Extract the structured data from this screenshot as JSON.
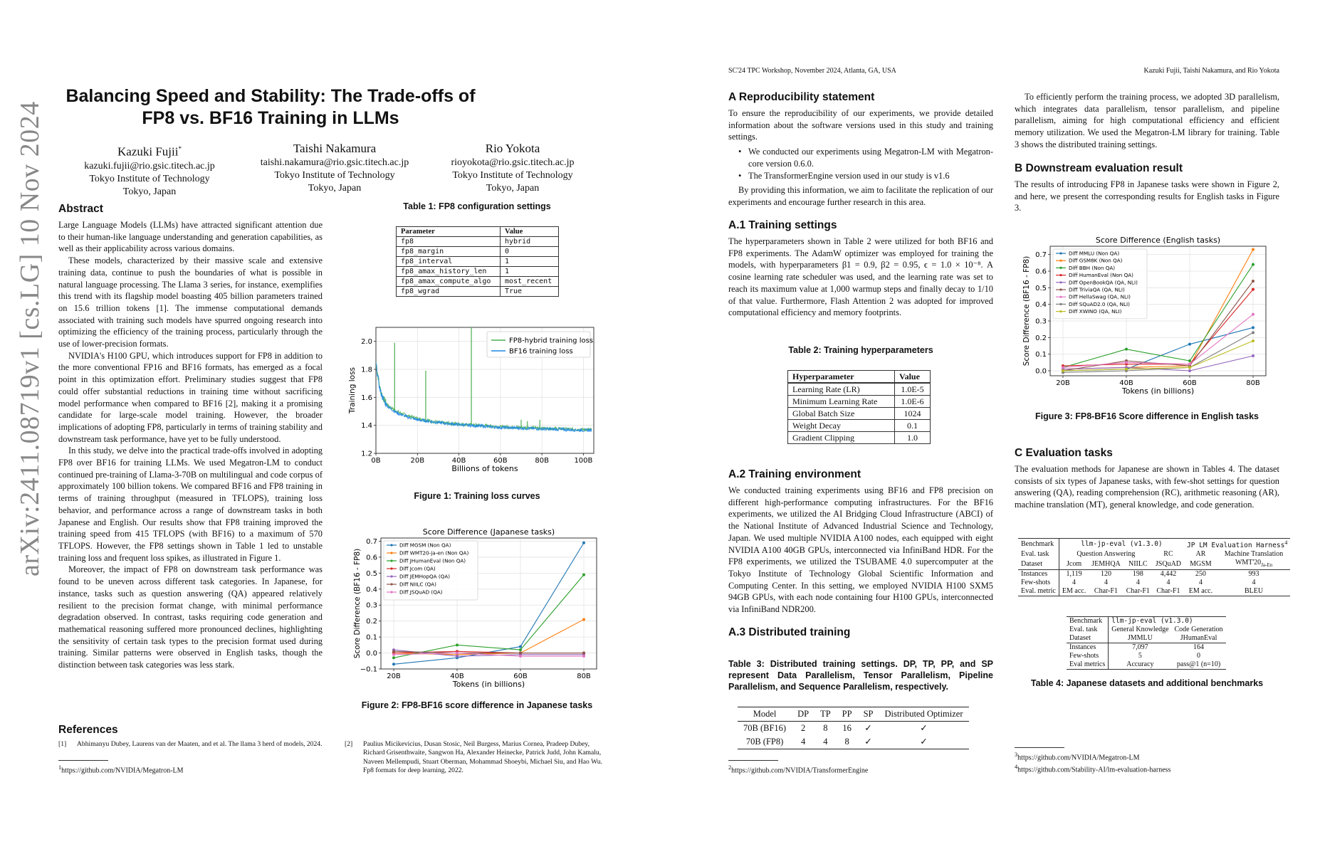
{
  "arxiv": {
    "id": "arXiv:2411.08719v1  [cs.LG]  10 Nov 2024"
  },
  "paper": {
    "title": "Balancing Speed and Stability: The Trade-offs of FP8 vs. BF16 Training in LLMs",
    "authors": [
      {
        "name": "Kazuki Fujii",
        "mark": "*",
        "email": "kazuki.fujii@rio.gsic.titech.ac.jp",
        "affiliation": "Tokyo Institute of Technology",
        "location": "Tokyo, Japan"
      },
      {
        "name": "Taishi Nakamura",
        "mark": "",
        "email": "taishi.nakamura@rio.gsic.titech.ac.jp",
        "affiliation": "Tokyo Institute of Technology",
        "location": "Tokyo, Japan"
      },
      {
        "name": "Rio Yokota",
        "mark": "",
        "email": "rioyokota@rio.gsic.titech.ac.jp",
        "affiliation": "Tokyo Institute of Technology",
        "location": "Tokyo, Japan"
      }
    ],
    "abstract_heading": "Abstract",
    "abstract": [
      "Large Language Models (LLMs) have attracted significant attention due to their human-like language understanding and generation capabilities, as well as their applicability across various domains.",
      "These models, characterized by their massive scale and extensive training data, continue to push the boundaries of what is possible in natural language processing. The Llama 3 series, for instance, exemplifies this trend with its flagship model boasting 405 billion parameters trained on 15.6 trillion tokens [1]. The immense computational demands associated with training such models have spurred ongoing research into optimizing the efficiency of the training process, particularly through the use of lower-precision formats.",
      "NVIDIA's H100 GPU, which introduces support for FP8 in addition to the more conventional FP16 and BF16 formats, has emerged as a focal point in this optimization effort. Preliminary studies suggest that FP8 could offer substantial reductions in training time without sacrificing model performance when compared to BF16 [2], making it a promising candidate for large-scale model training. However, the broader implications of adopting FP8, particularly in terms of training stability and downstream task performance, have yet to be fully understood.",
      "In this study, we delve into the practical trade-offs involved in adopting FP8 over BF16 for training LLMs. We used Megatron-LM to conduct continued pre-training of Llama-3-70B on multilingual and code corpus of approximately 100 billion tokens. We compared BF16 and FP8 training in terms of training throughput (measured in TFLOPS), training loss behavior, and performance across a range of downstream tasks in both Japanese and English. Our results show that FP8 training improved the training speed from 415 TFLOPS (with BF16) to a maximum of 570 TFLOPS. However, the FP8 settings shown in Table 1 led to unstable training loss and frequent loss spikes, as illustrated in Figure 1.",
      "Moreover, the impact of FP8 on downstream task performance was found to be uneven across different task categories. In Japanese, for instance, tasks such as question answering (QA) appeared relatively resilient to the precision format change, with minimal performance degradation observed. In contrast, tasks requiring code generation and mathematical reasoning suffered more pronounced declines, highlighting the sensitivity of certain task types to the precision format used during training. Similar patterns were observed in English tasks, though the distinction between task categories was less stark."
    ],
    "references_heading": "References",
    "references": [
      {
        "n": "[1]",
        "text": "Abhimanyu Dubey, Laurens van der Maaten, and et al. The llama 3 herd of models, 2024."
      },
      {
        "n": "[2]",
        "text": "Paulius Micikevicius, Dusan Stosic, Neil Burgess, Marius Cornea, Pradeep Dubey, Richard Grisenthwaite, Sangwon Ha, Alexander Heinecke, Patrick Judd, John Kamalu, Naveen Mellempudi, Stuart Oberman, Mohammad Shoeybi, Michael Siu, and Hao Wu. Fp8 formats for deep learning, 2022."
      }
    ],
    "footnote1": "https://github.com/NVIDIA/Megatron-LM"
  },
  "table1": {
    "caption": "Table 1: FP8 configuration settings",
    "headers": [
      "Parameter",
      "Value"
    ],
    "rows": [
      [
        "fp8",
        "hybrid"
      ],
      [
        "fp8_margin",
        "0"
      ],
      [
        "fp8_interval",
        "1"
      ],
      [
        "fp8_amax_history_len",
        "1"
      ],
      [
        "fp8_amax_compute_algo",
        "most_recent"
      ],
      [
        "fp8_wgrad",
        "True"
      ]
    ]
  },
  "figure1": {
    "caption": "Figure 1: Training loss curves"
  },
  "figure2": {
    "caption": "Figure 2: FP8-BF16 score difference in Japanese tasks"
  },
  "chart_data": [
    {
      "id": "fig1",
      "type": "line",
      "xlabel": "Billions of tokens",
      "ylabel": "Training loss",
      "xlim": [
        0,
        105
      ],
      "ylim": [
        1.2,
        2.1
      ],
      "xticks": [
        0,
        20,
        40,
        60,
        80,
        100
      ],
      "xtick_labels": [
        "0B",
        "20B",
        "40B",
        "60B",
        "80B",
        "100B"
      ],
      "yticks": [
        1.2,
        1.4,
        1.6,
        1.8,
        2.0
      ],
      "ytick_labels": [
        "1.2",
        "1.4",
        "1.6",
        "1.8",
        "2.0"
      ],
      "grid": true,
      "legend": "top-right",
      "series": [
        {
          "name": "FP8-hybrid training loss",
          "color": "#4caf50",
          "x": [
            0,
            1,
            2,
            4,
            6,
            10,
            15,
            20,
            30,
            40,
            50,
            60,
            70,
            80,
            90,
            100,
            104
          ],
          "y": [
            1.85,
            1.75,
            1.66,
            1.58,
            1.54,
            1.5,
            1.47,
            1.45,
            1.42,
            1.41,
            1.4,
            1.39,
            1.385,
            1.38,
            1.375,
            1.37,
            1.37
          ],
          "spikes": [
            [
              9,
              1.99
            ],
            [
              24,
              1.79
            ],
            [
              46,
              2.1
            ],
            [
              70,
              1.44
            ],
            [
              73,
              1.43
            ],
            [
              79,
              1.44
            ]
          ]
        },
        {
          "name": "BF16 training loss",
          "color": "#1e88e5",
          "x": [
            0,
            1,
            2,
            4,
            6,
            10,
            15,
            20,
            30,
            40,
            50,
            60,
            70,
            80,
            90,
            100,
            104
          ],
          "y": [
            1.84,
            1.74,
            1.65,
            1.57,
            1.53,
            1.49,
            1.46,
            1.44,
            1.42,
            1.405,
            1.395,
            1.385,
            1.38,
            1.375,
            1.37,
            1.365,
            1.365
          ]
        }
      ]
    },
    {
      "id": "fig2",
      "type": "line",
      "title": "Score Difference (Japanese tasks)",
      "xlabel": "Tokens (in billions)",
      "ylabel": "Score Difference (BF16 - FP8)",
      "categories": [
        "20B",
        "40B",
        "60B",
        "80B"
      ],
      "ylim": [
        -0.1,
        0.72
      ],
      "yticks": [
        -0.1,
        0.0,
        0.1,
        0.2,
        0.3,
        0.4,
        0.5,
        0.6,
        0.7
      ],
      "ytick_labels": [
        "−0.1",
        "0.0",
        "0.1",
        "0.2",
        "0.3",
        "0.4",
        "0.5",
        "0.6",
        "0.7"
      ],
      "grid": true,
      "legend": "top-left",
      "series": [
        {
          "name": "Diff MGSM (Non QA)",
          "color": "#1f77b4",
          "values": [
            -0.07,
            -0.03,
            0.04,
            0.69
          ]
        },
        {
          "name": "Diff WMT20-ja-en (Non QA)",
          "color": "#ff7f0e",
          "values": [
            0.0,
            -0.01,
            0.0,
            0.21
          ]
        },
        {
          "name": "Diff JHumanEval (Non QA)",
          "color": "#2ca02c",
          "values": [
            -0.03,
            0.05,
            0.02,
            0.49
          ]
        },
        {
          "name": "Diff Jcom (QA)",
          "color": "#d62728",
          "values": [
            0.0,
            0.01,
            0.0,
            0.0
          ]
        },
        {
          "name": "Diff JEMHopQA (QA)",
          "color": "#9467bd",
          "values": [
            0.02,
            -0.02,
            -0.01,
            -0.01
          ]
        },
        {
          "name": "Diff NIILC (QA)",
          "color": "#8c564b",
          "values": [
            0.01,
            0.0,
            0.0,
            0.0
          ]
        },
        {
          "name": "Diff JSQuAD (QA)",
          "color": "#e377c2",
          "values": [
            -0.01,
            0.0,
            -0.02,
            -0.02
          ]
        }
      ]
    },
    {
      "id": "fig3",
      "type": "line",
      "title": "Score Difference (English tasks)",
      "xlabel": "Tokens (in billions)",
      "ylabel": "Score Difference (BF16 - FP8)",
      "categories": [
        "20B",
        "40B",
        "60B",
        "80B"
      ],
      "ylim": [
        -0.03,
        0.75
      ],
      "yticks": [
        0.0,
        0.1,
        0.2,
        0.3,
        0.4,
        0.5,
        0.6,
        0.7
      ],
      "ytick_labels": [
        "0.0",
        "0.1",
        "0.2",
        "0.3",
        "0.4",
        "0.5",
        "0.6",
        "0.7"
      ],
      "grid": true,
      "legend": "top-left",
      "series": [
        {
          "name": "Diff MMLU (Non QA)",
          "color": "#1f77b4",
          "values": [
            0.0,
            0.01,
            0.16,
            0.26
          ]
        },
        {
          "name": "Diff GSM8K (Non QA)",
          "color": "#ff7f0e",
          "values": [
            0.01,
            0.02,
            0.03,
            0.73
          ]
        },
        {
          "name": "Diff BBH (Non QA)",
          "color": "#2ca02c",
          "values": [
            0.02,
            0.13,
            0.06,
            0.64
          ]
        },
        {
          "name": "Diff HumanEval (Non QA)",
          "color": "#d62728",
          "values": [
            0.03,
            0.04,
            0.04,
            0.49
          ]
        },
        {
          "name": "Diff OpenBookQA (QA, NLI)",
          "color": "#9467bd",
          "values": [
            0.01,
            0.02,
            0.0,
            0.09
          ]
        },
        {
          "name": "Diff TriviaQA (QA, NLI)",
          "color": "#8c564b",
          "values": [
            0.0,
            0.06,
            0.03,
            0.54
          ]
        },
        {
          "name": "Diff HellaSwag (QA, NLI)",
          "color": "#e377c2",
          "values": [
            0.02,
            0.05,
            0.04,
            0.34
          ]
        },
        {
          "name": "Diff SQuAD2.0 (QA, NLI)",
          "color": "#7f7f7f",
          "values": [
            -0.01,
            0.0,
            0.02,
            0.23
          ]
        },
        {
          "name": "Diff XWINO (QA, NLI)",
          "color": "#bcbd22",
          "values": [
            0.0,
            0.01,
            0.02,
            0.18
          ]
        }
      ]
    }
  ],
  "page2": {
    "header_left": "SC'24 TPC Workshop, November 2024, Atlanta, GA, USA",
    "header_right": "Kazuki Fujii, Taishi Nakamura, and Rio Yokota",
    "secA": {
      "heading": "A    Reproducibility statement",
      "intro": "To ensure the reproducibility of our experiments, we provide detailed information about the software versions used in this study and training settings.",
      "bullets": [
        "We conducted our experiments using Megatron-LM with Megatron-core version 0.6.0.",
        "The TransformerEngine version used in our study is v1.6"
      ],
      "outro": "By providing this information, we aim to facilitate the replication of our experiments and encourage further research in this area."
    },
    "secA1": {
      "heading": "A.1    Training settings",
      "text": "The hyperparameters shown in Table 2 were utilized for both BF16 and FP8 experiments. The AdamW optimizer was employed for training the models, with hyperparameters β1 = 0.9, β2 = 0.95, ϵ = 1.0 × 10⁻⁸. A cosine learning rate scheduler was used, and the learning rate was set to reach its maximum value at 1,000 warmup steps and finally decay to 1/10 of that value. Furthermore, Flash Attention 2 was adopted for improved computational efficiency and memory footprints."
    },
    "table2": {
      "caption": "Table 2: Training hyperparameters",
      "headers": [
        "Hyperparameter",
        "Value"
      ],
      "rows": [
        [
          "Learning Rate (LR)",
          "1.0E-5"
        ],
        [
          "Minimum Learning Rate",
          "1.0E-6"
        ],
        [
          "Global Batch Size",
          "1024"
        ],
        [
          "Weight Decay",
          "0.1"
        ],
        [
          "Gradient Clipping",
          "1.0"
        ]
      ]
    },
    "secA2": {
      "heading": "A.2    Training environment",
      "text": "We conducted training experiments using BF16 and FP8 precision on different high-performance computing infrastructures. For the BF16 experiments, we utilized the AI Bridging Cloud Infrastructure (ABCI) of the National Institute of Advanced Industrial Science and Technology, Japan. We used multiple NVIDIA A100 nodes, each equipped with eight NVIDIA A100 40GB GPUs, interconnected via InfiniBand HDR. For the FP8 experiments, we utilized the TSUBAME 4.0 supercomputer at the Tokyo Institute of Technology Global Scientific Information and Computing Center. In this setting, we employed NVIDIA H100 SXM5 94GB GPUs, with each node containing four H100 GPUs, interconnected via InfiniBand NDR200."
    },
    "secA3": {
      "heading": "A.3    Distributed training"
    },
    "table3": {
      "caption": "Table 3: Distributed training settings. DP, TP, PP, and SP represent Data Parallelism, Tensor Parallelism, Pipeline Parallelism, and Sequence Parallelism, respectively.",
      "headers": [
        "Model",
        "DP",
        "TP",
        "PP",
        "SP",
        "Distributed Optimizer"
      ],
      "rows": [
        [
          "70B (BF16)",
          "2",
          "8",
          "16",
          "✓",
          "✓"
        ],
        [
          "70B (FP8)",
          "4",
          "4",
          "8",
          "✓",
          "✓"
        ]
      ]
    },
    "footnote2": "https://github.com/NVIDIA/TransformerEngine",
    "colR_intro": "To efficiently perform the training process, we adopted 3D parallelism, which integrates data parallelism, tensor parallelism, and pipeline parallelism, aiming for high computational efficiency and efficient memory utilization. We used the Megatron-LM library for training. Table 3 shows the distributed training settings.",
    "secB": {
      "heading": "B    Downstream evaluation result",
      "text": "The results of introducing FP8 in Japanese tasks were shown in Figure 2, and here, we present the corresponding results for English tasks in Figure 3."
    },
    "figure3": {
      "caption": "Figure 3: FP8-BF16 Score difference in English tasks"
    },
    "secC": {
      "heading": "C    Evaluation tasks",
      "text": "The evaluation methods for Japanese are shown in Tables 4. The dataset consists of six types of Japanese tasks, with few-shot settings for question answering (QA), reading comprehension (RC), arithmetic reasoning (AR), machine translation (MT), general knowledge, and code generation."
    },
    "table4a": {
      "benchmark_label": "Benchmark",
      "bench1": "llm-jp-eval (v1.3.0)",
      "bench2": "JP LM Evaluation Harness",
      "task_label": "Eval. task",
      "tasks": [
        "Question Answering",
        "RC",
        "AR",
        "Machine Translation"
      ],
      "dataset_label": "Dataset",
      "datasets": [
        "Jcom",
        "JEMHQA",
        "NIILC",
        "JSQuAD",
        "MGSM",
        "WMT'20"
      ],
      "wmt_sub": "Ja-En",
      "instances_label": "Instances",
      "instances": [
        "1,119",
        "120",
        "198",
        "4,442",
        "250",
        "993"
      ],
      "fewshot_label": "Few-shots",
      "fewshots": [
        "4",
        "4",
        "4",
        "4",
        "4",
        "4"
      ],
      "metric_label": "Eval. metric",
      "metrics": [
        "EM acc.",
        "Char-F1",
        "Char-F1",
        "Char-F1",
        "EM acc.",
        "BLEU"
      ]
    },
    "table4b": {
      "benchmark_label": "Benchmark",
      "bench": "llm-jp-eval (v1.3.0)",
      "task_label": "Eval. task",
      "tasks": [
        "General Knowledge",
        "Code Generation"
      ],
      "dataset_label": "Dataset",
      "datasets": [
        "JMMLU",
        "JHumanEval"
      ],
      "instances_label": "Instances",
      "instances": [
        "7,097",
        "164"
      ],
      "fewshot_label": "Few-shots",
      "fewshots": [
        "5",
        "0"
      ],
      "metric_label": "Eval metrics",
      "metrics": [
        "Accuracy",
        "pass@1 (n=10)"
      ]
    },
    "table4": {
      "caption": "Table 4: Japanese datasets and additional benchmarks"
    },
    "footnote3": "https://github.com/NVIDIA/Megatron-LM",
    "footnote4": "https://github.com/Stability-AI/lm-evaluation-harness"
  }
}
